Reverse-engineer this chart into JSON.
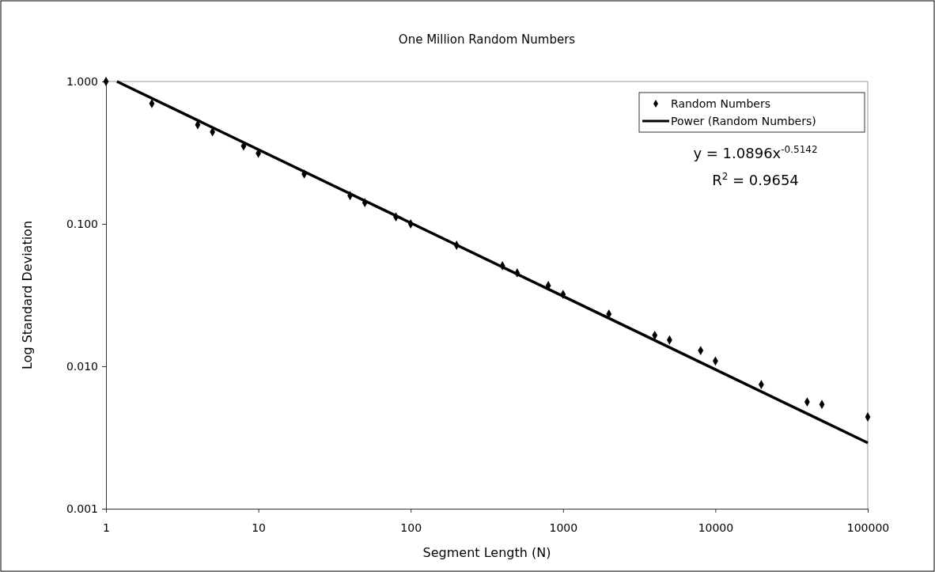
{
  "chart_data": {
    "type": "scatter",
    "title": "One Million Random Numbers",
    "xlabel": "Segment Length (N)",
    "ylabel": "Log Standard Deviation",
    "log": "xy",
    "grid": false,
    "legend": "top right",
    "xlim": [
      1,
      100000
    ],
    "xticks": [
      1,
      10,
      100,
      1000,
      10000,
      100000
    ],
    "ylim": [
      0.001,
      1
    ],
    "yticks": [
      {
        "value": 0.001,
        "label": "0.001"
      },
      {
        "value": 0.01,
        "label": "0.010"
      },
      {
        "value": 0.1,
        "label": "0.100"
      },
      {
        "value": 1,
        "label": "1.000"
      }
    ],
    "annotations": [
      "y = 1.0896x$^{-0.5142}$",
      "R$^{2}$ = 0.9654"
    ],
    "series": [
      {
        "name": "Random Numbers",
        "marker": "diamond",
        "color": "#000000",
        "x": [
          1,
          2,
          4,
          5,
          8,
          10,
          20,
          40,
          50,
          80,
          100,
          200,
          400,
          500,
          800,
          1000,
          2000,
          4000,
          5000,
          8000,
          10000,
          20000,
          40000,
          50000,
          100000
        ],
        "values": [
          1,
          0.7,
          0.497,
          0.443,
          0.352,
          0.313,
          0.224,
          0.158,
          0.141,
          0.112,
          0.1,
          0.0708,
          0.0508,
          0.0453,
          0.0369,
          0.032,
          0.0233,
          0.0165,
          0.0153,
          0.0129,
          0.0109,
          0.00745,
          0.00562,
          0.0054,
          0.00441
        ]
      },
      {
        "name": "Power (Random Numbers)",
        "type": "line",
        "line_style": "solid",
        "color": "#000000",
        "x": [
          1.18,
          100000
        ],
        "values": [
          1,
          0.0029
        ]
      }
    ]
  }
}
